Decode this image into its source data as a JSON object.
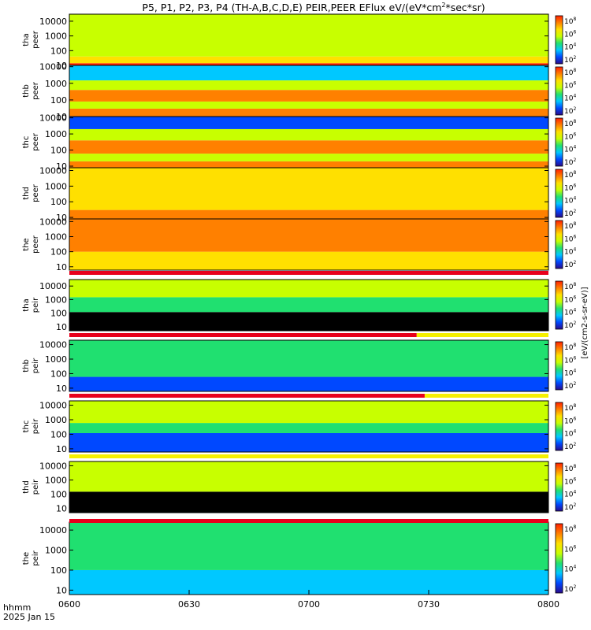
{
  "title_parts": [
    "P5, P1, P2, P3, P4 (TH-A,B,C,D,E) PEIR,PEER EFlux eV/(eV*cm",
    "2",
    "*sec*sr)"
  ],
  "colorbar_unit_label": "[eV/(cm2-s-sr-eV)]",
  "x_axis": {
    "time_label": "hhmm",
    "date_label": "2025 Jan 15",
    "ticks": [
      "0600",
      "0630",
      "0700",
      "0730",
      "0800"
    ]
  },
  "colors": {
    "background": "#ffffff",
    "mode_bar_red": "#e8001c",
    "mode_bar_yellow": "#f5f000",
    "black": "#000000"
  },
  "chart_data": {
    "type": "heatmap",
    "time_range": [
      "0600",
      "0800"
    ],
    "y_scale": "log",
    "y_tick_labels": [
      "10",
      "100",
      "1000",
      "10000"
    ],
    "colormap": [
      "#2a0a8a",
      "#0048ff",
      "#00c8ff",
      "#20e070",
      "#c8ff00",
      "#ffe000",
      "#ff8000",
      "#ff2000"
    ],
    "panels": [
      {
        "label": [
          "tha",
          "peer"
        ],
        "ylim": [
          10,
          30000
        ],
        "colorbar_ticks": [
          "10^8",
          "10^6",
          "10^4",
          "10^2"
        ],
        "bands": [
          {
            "y": [
              10,
              14
            ],
            "level": 0.95
          },
          {
            "y": [
              14,
              40
            ],
            "level": 0.75
          },
          {
            "y": [
              40,
              30000
            ],
            "level": 0.6
          }
        ]
      },
      {
        "label": [
          "thb",
          "peer"
        ],
        "ylim": [
          10,
          12000
        ],
        "colorbar_ticks": [
          "10^8",
          "10^6",
          "10^4",
          "10^2"
        ],
        "bands": [
          {
            "y": [
              10,
              30
            ],
            "level": 0.85
          },
          {
            "y": [
              30,
              80
            ],
            "level": 0.55
          },
          {
            "y": [
              80,
              400
            ],
            "level": 0.85
          },
          {
            "y": [
              400,
              1500
            ],
            "level": 0.55
          },
          {
            "y": [
              1500,
              12000
            ],
            "level": 0.35
          }
        ]
      },
      {
        "label": [
          "thc",
          "peer"
        ],
        "ylim": [
          8,
          12000
        ],
        "colorbar_ticks": [
          "10^8",
          "10^6",
          "10^4",
          "10^2"
        ],
        "bands": [
          {
            "y": [
              8,
              20
            ],
            "level": 0.9
          },
          {
            "y": [
              20,
              60
            ],
            "level": 0.6
          },
          {
            "y": [
              60,
              400
            ],
            "level": 0.9
          },
          {
            "y": [
              400,
              2000
            ],
            "level": 0.5
          },
          {
            "y": [
              2000,
              12000
            ],
            "level": 0.2
          }
        ]
      },
      {
        "label": [
          "thd",
          "peer"
        ],
        "ylim": [
          8,
          15000
        ],
        "colorbar_ticks": [
          "10^8",
          "10^6",
          "10^4",
          "10^2"
        ],
        "bands": [
          {
            "y": [
              8,
              30
            ],
            "level": 0.9
          },
          {
            "y": [
              30,
              15000
            ],
            "level": 0.65
          }
        ]
      },
      {
        "label": [
          "the",
          "peer"
        ],
        "ylim": [
          6,
          15000
        ],
        "colorbar_ticks": [
          "10^8",
          "10^6",
          "10^4",
          "10^2"
        ],
        "bands": [
          {
            "y": [
              6,
              100
            ],
            "level": 0.72
          },
          {
            "y": [
              100,
              15000
            ],
            "level": 0.8
          }
        ]
      },
      {
        "label": [
          "tha",
          "peir"
        ],
        "ylim": [
          5,
          30000
        ],
        "colorbar_ticks": [
          "10^8",
          "10^6",
          "10^4",
          "10^2"
        ],
        "bands": [
          {
            "y": [
              5,
              120
            ],
            "level": -1
          },
          {
            "y": [
              120,
              1500
            ],
            "level": 0.45
          },
          {
            "y": [
              1500,
              30000
            ],
            "level": 0.55
          }
        ]
      },
      {
        "label": [
          "thb",
          "peir"
        ],
        "ylim": [
          6,
          20000
        ],
        "colorbar_ticks": [
          "10^8",
          "10^6",
          "10^4",
          "10^2"
        ],
        "bands": [
          {
            "y": [
              6,
              60
            ],
            "level": 0.15
          },
          {
            "y": [
              60,
              20000
            ],
            "level": 0.45
          }
        ]
      },
      {
        "label": [
          "thc",
          "peir"
        ],
        "ylim": [
          6,
          20000
        ],
        "colorbar_ticks": [
          "10^8",
          "10^6",
          "10^4",
          "10^2"
        ],
        "bands": [
          {
            "y": [
              6,
              120
            ],
            "level": 0.2
          },
          {
            "y": [
              120,
              600
            ],
            "level": 0.4
          },
          {
            "y": [
              600,
              20000
            ],
            "level": 0.5
          }
        ]
      },
      {
        "label": [
          "thd",
          "peir"
        ],
        "ylim": [
          5,
          20000
        ],
        "colorbar_ticks": [
          "10^8",
          "10^6",
          "10^4",
          "10^2"
        ],
        "bands": [
          {
            "y": [
              5,
              150
            ],
            "level": -1
          },
          {
            "y": [
              150,
              20000
            ],
            "level": 0.55
          }
        ]
      },
      {
        "label": [
          "the",
          "peir"
        ],
        "ylim": [
          6,
          25000
        ],
        "colorbar_ticks": [
          "10^8",
          "10^6",
          "10^4",
          "10^2"
        ],
        "bands": [
          {
            "y": [
              6,
              100
            ],
            "level": 0.35
          },
          {
            "y": [
              100,
              25000
            ],
            "level": 0.48
          }
        ]
      }
    ],
    "mode_bars": [
      {
        "after_panel": 4,
        "segments": [
          {
            "from": "0600",
            "to": "0800",
            "color": "mode_bar_red"
          }
        ]
      },
      {
        "after_panel": 5,
        "segments": [
          {
            "from": "0600",
            "to": "0727",
            "color": "mode_bar_red"
          },
          {
            "from": "0727",
            "to": "0800",
            "color": "mode_bar_yellow"
          }
        ]
      },
      {
        "after_panel": 6,
        "segments": [
          {
            "from": "0600",
            "to": "0729",
            "color": "mode_bar_red"
          },
          {
            "from": "0729",
            "to": "0800",
            "color": "mode_bar_yellow"
          }
        ]
      },
      {
        "after_panel": 7,
        "segments": [
          {
            "from": "0600",
            "to": "0800",
            "color": "mode_bar_yellow"
          }
        ]
      },
      {
        "after_panel": 8,
        "segments": [
          {
            "from": "0600",
            "to": "0800",
            "color": "mode_bar_red"
          }
        ]
      }
    ]
  }
}
